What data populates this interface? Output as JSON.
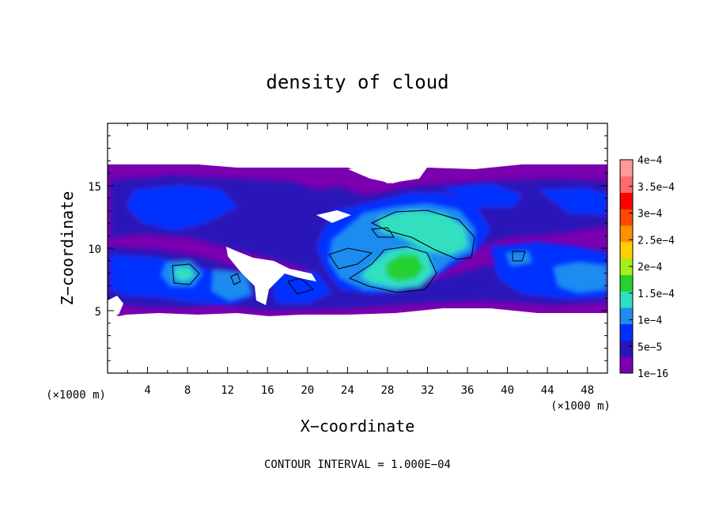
{
  "chart_data": {
    "type": "heatmap",
    "title": "density of cloud",
    "xlabel": "X−coordinate",
    "ylabel": "Z−coordinate",
    "x_unit_left": "(×1000 m)",
    "x_unit_right": "(×1000 m)",
    "xlim": [
      0,
      50
    ],
    "ylim": [
      0,
      20
    ],
    "x_ticks": [
      4,
      8,
      12,
      16,
      20,
      24,
      28,
      32,
      36,
      40,
      44,
      48
    ],
    "y_ticks": [
      5,
      10,
      15
    ],
    "footer": "CONTOUR INTERVAL = 1.000E−04",
    "colorbar": {
      "labels": [
        "1e−16",
        "5e−5",
        "1e−4",
        "1.5e−4",
        "2e−4",
        "2.5e−4",
        "3e−4",
        "3.5e−4",
        "4e−4"
      ],
      "colors": [
        "#7a00b0",
        "#2a16b8",
        "#0030ff",
        "#1f8cf0",
        "#30e0c0",
        "#28d030",
        "#a8ee18",
        "#ffd000",
        "#ff9000",
        "#ff4800",
        "#ff0000",
        "#ff6a6a",
        "#ff9a9a"
      ]
    },
    "cloud_layer": {
      "z_bottom": 5,
      "z_top": 16.7,
      "note": "density field roughly 1e-16 to 1.5e-4 within layer; max near x=29, z=8.5"
    }
  }
}
